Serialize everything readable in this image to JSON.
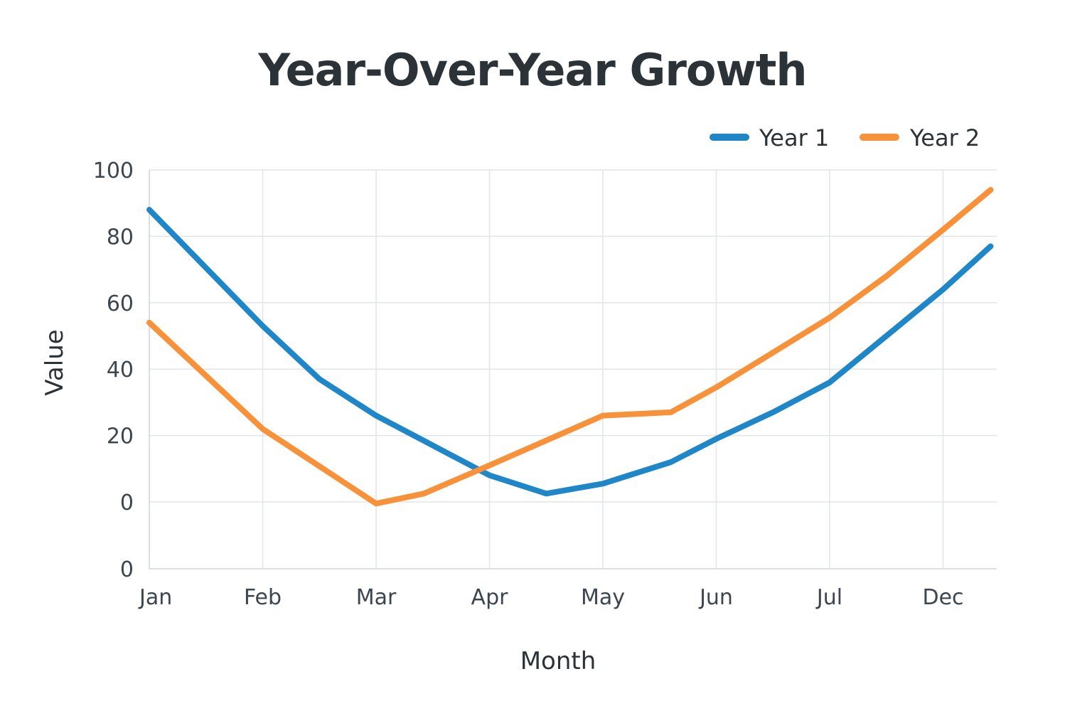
{
  "chart_data": {
    "type": "line",
    "title": "Year-Over-Year Growth",
    "xlabel": "Month",
    "ylabel": "Value",
    "categories": [
      "Jan",
      "Feb",
      "Mar",
      "Apr",
      "May",
      "Jun",
      "Jul",
      "Dec"
    ],
    "y_tick_labels": [
      "100",
      "80",
      "60",
      "40",
      "20",
      "0",
      "0"
    ],
    "series": [
      {
        "name": "Year 1",
        "color": "#1f86c8",
        "x": [
          0,
          1,
          1.5,
          2,
          2.5,
          3,
          3.5,
          4,
          4.6,
          5,
          5.5,
          6,
          6.5,
          7,
          7.42
        ],
        "values": [
          88,
          53,
          37,
          26,
          17,
          8,
          2.5,
          5.5,
          12,
          19,
          27,
          36,
          50,
          64,
          77
        ]
      },
      {
        "name": "Year 2",
        "color": "#f7923a",
        "x": [
          0,
          1,
          2,
          2.42,
          3,
          3.5,
          4,
          4.6,
          5,
          5.5,
          6,
          6.5,
          7,
          7.42
        ],
        "values": [
          54,
          22,
          -0.5,
          2.5,
          11,
          18.5,
          26,
          27,
          34.5,
          45,
          55.5,
          68,
          82,
          94
        ]
      }
    ],
    "legend_position": "top-right",
    "grid": true
  }
}
